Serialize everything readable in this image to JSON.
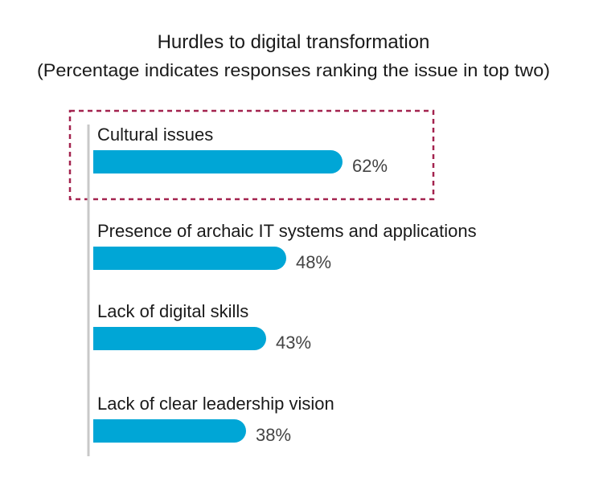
{
  "chart_data": {
    "type": "bar",
    "orientation": "horizontal",
    "title": "Hurdles to digital transformation",
    "subtitle": "(Percentage indicates responses ranking the issue in top two)",
    "categories": [
      "Cultural issues",
      "Presence of archaic IT systems and applications",
      "Lack of digital skills",
      "Lack of clear leadership vision"
    ],
    "values": [
      62,
      48,
      43,
      38
    ],
    "value_labels": [
      "62%",
      "48%",
      "43%",
      "38%"
    ],
    "highlighted_category": "Cultural issues",
    "grid": false,
    "legend": "none",
    "colors": {
      "bar": "#00a6d6",
      "highlight_box": "#a3234f",
      "axis_line": "#c8c8c8"
    }
  }
}
